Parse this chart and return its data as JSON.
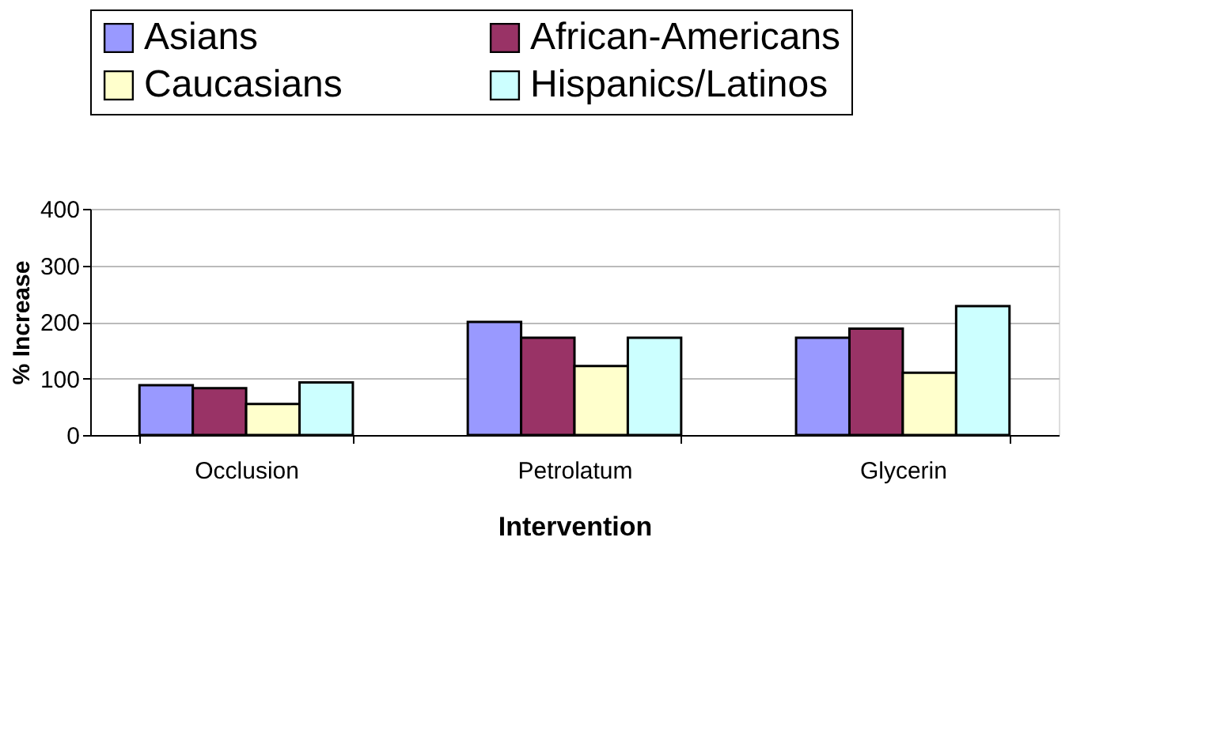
{
  "chart_data": {
    "type": "bar",
    "xlabel": "Intervention",
    "ylabel": "% Increase",
    "categories": [
      "Occlusion",
      "Petrolatum",
      "Glycerin"
    ],
    "series": [
      {
        "name": "Asians",
        "color": "#9999ff",
        "values": [
          88,
          200,
          172
        ]
      },
      {
        "name": "African-Americans",
        "color": "#993366",
        "values": [
          83,
          172,
          188
        ]
      },
      {
        "name": "Caucasians",
        "color": "#ffffcc",
        "values": [
          55,
          122,
          110
        ]
      },
      {
        "name": "Hispanics/Latinos",
        "color": "#ccffff",
        "values": [
          93,
          172,
          228
        ]
      }
    ],
    "ylim": [
      0,
      400
    ],
    "yticks": [
      0,
      100,
      200,
      300,
      400
    ],
    "grid": "y",
    "legend": "top"
  }
}
